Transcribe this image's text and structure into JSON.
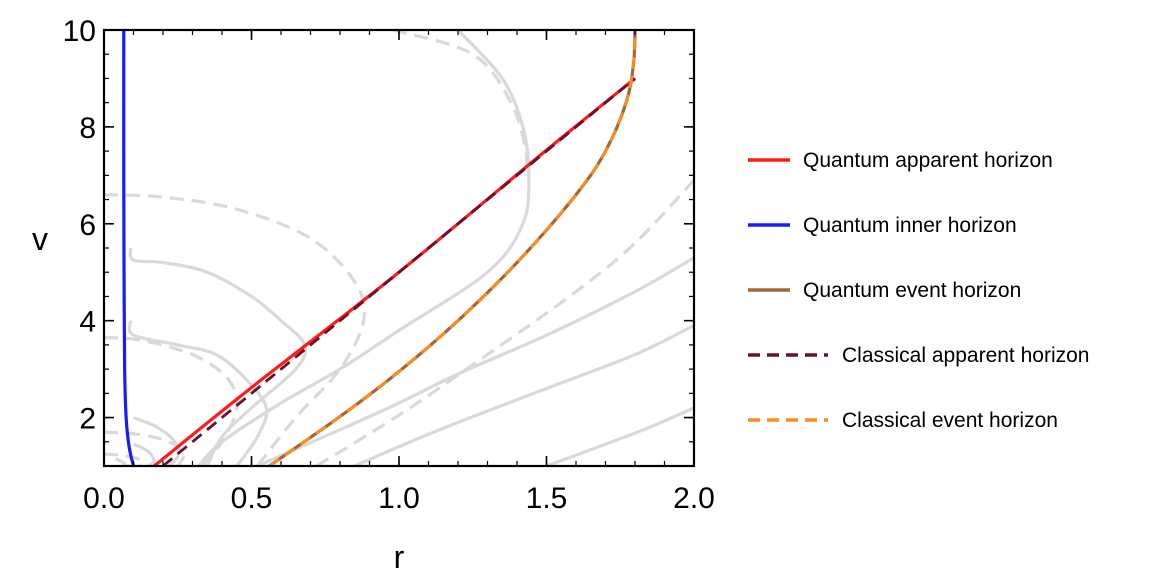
{
  "chart_data": {
    "type": "line",
    "title": "",
    "xlabel": "r",
    "ylabel": "v",
    "xlim": [
      0.0,
      2.0
    ],
    "ylim": [
      1.0,
      10.0
    ],
    "x_ticks": [
      "0.0",
      "0.5",
      "1.0",
      "1.5",
      "2.0"
    ],
    "y_ticks": [
      "2",
      "4",
      "6",
      "8",
      "10"
    ],
    "grid": false,
    "legend_position": "right",
    "series": [
      {
        "name": "Quantum apparent horizon",
        "color": "#ff1a1a",
        "dash": "solid",
        "points": [
          [
            0.17,
            1.0
          ],
          [
            0.5,
            2.62
          ],
          [
            1.0,
            5.0
          ],
          [
            1.5,
            7.52
          ],
          [
            1.8,
            9.0
          ]
        ]
      },
      {
        "name": "Quantum inner horizon",
        "color": "#1a1aff",
        "dash": "solid",
        "points": [
          [
            0.1,
            1.0
          ],
          [
            0.085,
            1.4
          ],
          [
            0.075,
            2.0
          ],
          [
            0.07,
            3.0
          ],
          [
            0.068,
            5.0
          ],
          [
            0.067,
            7.0
          ],
          [
            0.067,
            10.0
          ]
        ]
      },
      {
        "name": "Quantum event horizon",
        "color": "#a0683a",
        "dash": "solid",
        "points": [
          [
            0.56,
            1.0
          ],
          [
            0.8,
            2.02
          ],
          [
            1.0,
            2.95
          ],
          [
            1.2,
            4.0
          ],
          [
            1.4,
            5.2
          ],
          [
            1.6,
            6.6
          ],
          [
            1.7,
            7.5
          ],
          [
            1.77,
            8.5
          ],
          [
            1.795,
            9.3
          ],
          [
            1.8,
            10.0
          ]
        ]
      },
      {
        "name": "Classical apparent horizon",
        "color": "#6b0f2a",
        "dash": "dashed",
        "points": [
          [
            0.2,
            1.0
          ],
          [
            1.0,
            5.0
          ],
          [
            1.8,
            9.0
          ]
        ]
      },
      {
        "name": "Classical event horizon",
        "color": "#ff8c1a",
        "dash": "dashed",
        "points": [
          [
            0.56,
            1.0
          ],
          [
            0.8,
            2.02
          ],
          [
            1.0,
            2.95
          ],
          [
            1.2,
            4.0
          ],
          [
            1.4,
            5.2
          ],
          [
            1.6,
            6.6
          ],
          [
            1.7,
            7.5
          ],
          [
            1.77,
            8.5
          ],
          [
            1.795,
            9.3
          ],
          [
            1.8,
            10.0
          ]
        ]
      }
    ],
    "background_curves": [
      {
        "style": "solid",
        "color": "#d9d9d9",
        "points": [
          [
            0.52,
            1.0
          ],
          [
            0.8,
            1.75
          ],
          [
            1.0,
            2.3
          ],
          [
            1.2,
            2.9
          ],
          [
            1.5,
            3.7
          ],
          [
            1.8,
            4.6
          ],
          [
            2.0,
            5.3
          ]
        ]
      },
      {
        "style": "solid",
        "color": "#d9d9d9",
        "points": [
          [
            0.85,
            1.0
          ],
          [
            1.0,
            1.4
          ],
          [
            1.2,
            1.9
          ],
          [
            1.5,
            2.6
          ],
          [
            1.8,
            3.3
          ],
          [
            2.0,
            3.9
          ]
        ]
      },
      {
        "style": "solid",
        "color": "#d9d9d9",
        "points": [
          [
            1.5,
            1.0
          ],
          [
            1.7,
            1.45
          ],
          [
            1.85,
            1.8
          ],
          [
            2.0,
            2.2
          ]
        ]
      },
      {
        "style": "dashed",
        "color": "#d9d9d9",
        "points": [
          [
            0.72,
            1.0
          ],
          [
            1.0,
            2.05
          ],
          [
            1.3,
            3.3
          ],
          [
            1.6,
            4.6
          ],
          [
            1.8,
            5.6
          ],
          [
            2.0,
            6.9
          ]
        ]
      },
      {
        "style": "solid",
        "color": "#d9d9d9",
        "points": [
          [
            1.2,
            10.0
          ],
          [
            1.35,
            9.0
          ],
          [
            1.42,
            8.0
          ],
          [
            1.44,
            7.0
          ],
          [
            1.42,
            6.0
          ],
          [
            1.3,
            5.0
          ],
          [
            1.0,
            3.8
          ],
          [
            0.8,
            3.0
          ],
          [
            0.6,
            2.3
          ],
          [
            0.4,
            1.5
          ],
          [
            0.32,
            1.0
          ]
        ]
      },
      {
        "style": "dashed",
        "color": "#d9d9d9",
        "points": [
          [
            0.98,
            10.0
          ],
          [
            1.25,
            9.5
          ],
          [
            1.38,
            8.5
          ],
          [
            1.43,
            7.5
          ],
          [
            1.43,
            7.0
          ]
        ]
      },
      {
        "style": "solid",
        "color": "#d9d9d9",
        "points": [
          [
            0.09,
            5.5
          ],
          [
            0.1,
            5.25
          ],
          [
            0.2,
            5.2
          ],
          [
            0.35,
            5.0
          ],
          [
            0.5,
            4.5
          ],
          [
            0.6,
            4.0
          ],
          [
            0.68,
            3.5
          ],
          [
            0.65,
            3.0
          ],
          [
            0.5,
            2.2
          ],
          [
            0.4,
            1.6
          ],
          [
            0.35,
            1.0
          ]
        ]
      },
      {
        "style": "dashed",
        "color": "#d9d9d9",
        "points": [
          [
            0.0,
            6.6
          ],
          [
            0.2,
            6.55
          ],
          [
            0.45,
            6.3
          ],
          [
            0.7,
            5.7
          ],
          [
            0.85,
            4.8
          ],
          [
            0.88,
            4.0
          ],
          [
            0.8,
            3.0
          ],
          [
            0.65,
            2.0
          ],
          [
            0.52,
            1.0
          ]
        ]
      },
      {
        "style": "solid",
        "color": "#d9d9d9",
        "points": [
          [
            0.09,
            4.0
          ],
          [
            0.1,
            3.7
          ],
          [
            0.25,
            3.5
          ],
          [
            0.38,
            3.3
          ],
          [
            0.48,
            2.8
          ],
          [
            0.55,
            2.2
          ],
          [
            0.52,
            1.6
          ],
          [
            0.45,
            1.0
          ]
        ]
      },
      {
        "style": "dashed",
        "color": "#d9d9d9",
        "points": [
          [
            0.0,
            3.65
          ],
          [
            0.12,
            3.6
          ],
          [
            0.3,
            3.3
          ],
          [
            0.42,
            2.8
          ],
          [
            0.45,
            2.2
          ],
          [
            0.4,
            1.5
          ],
          [
            0.33,
            1.0
          ]
        ]
      },
      {
        "style": "solid",
        "color": "#d9d9d9",
        "points": [
          [
            0.1,
            2.0
          ],
          [
            0.18,
            1.8
          ],
          [
            0.24,
            1.5
          ],
          [
            0.25,
            1.2
          ],
          [
            0.22,
            1.0
          ]
        ]
      },
      {
        "style": "dashed",
        "color": "#d9d9d9",
        "points": [
          [
            0.0,
            1.7
          ],
          [
            0.12,
            1.65
          ],
          [
            0.22,
            1.5
          ],
          [
            0.27,
            1.25
          ],
          [
            0.25,
            1.0
          ]
        ]
      },
      {
        "style": "solid",
        "color": "#d9d9d9",
        "points": [
          [
            0.1,
            1.45
          ],
          [
            0.15,
            1.3
          ],
          [
            0.17,
            1.1
          ],
          [
            0.15,
            1.0
          ]
        ]
      },
      {
        "style": "dashed",
        "color": "#d9d9d9",
        "points": [
          [
            0.0,
            1.25
          ],
          [
            0.08,
            1.2
          ],
          [
            0.13,
            1.1
          ],
          [
            0.12,
            1.0
          ]
        ]
      },
      {
        "style": "solid",
        "color": "#d9d9d9",
        "points": [
          [
            0.04,
            1.15
          ],
          [
            0.07,
            1.05
          ],
          [
            0.07,
            1.0
          ]
        ]
      }
    ]
  }
}
